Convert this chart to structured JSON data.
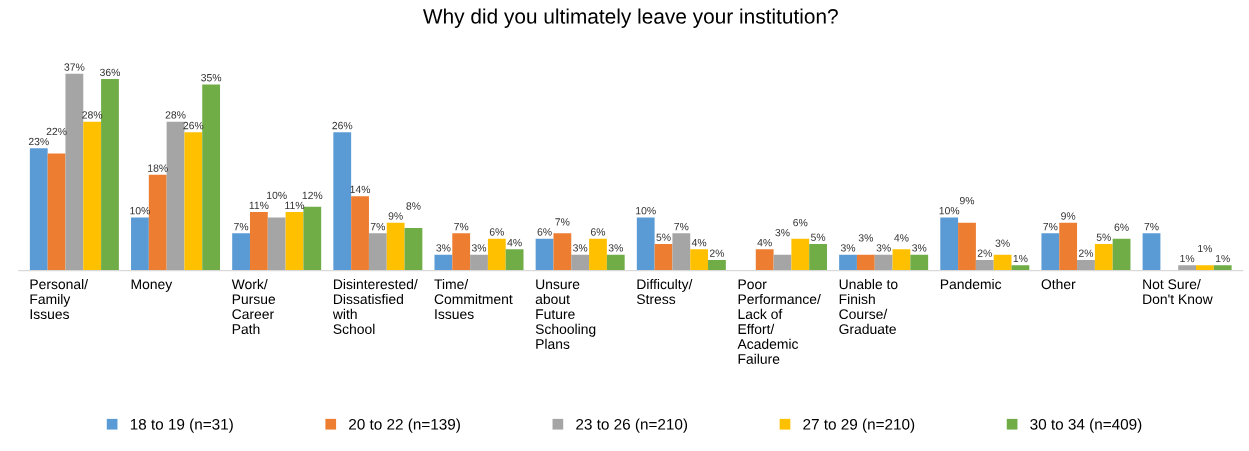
{
  "chart_data": {
    "type": "bar",
    "title": "Why did you ultimately leave your institution?",
    "categories": [
      "Personal/\nFamily\nIssues",
      "Money",
      "Work/\nPursue\nCareer\nPath",
      "Disinterested/\nDissatisfied\nwith\nSchool",
      "Time/\nCommitment\nIssues",
      "Unsure\nabout\nFuture\nSchooling\nPlans",
      "Difficulty/\nStress",
      "Poor\nPerformance/\nLack of\nEffort/\nAcademic\nFailure",
      "Unable to\nFinish\nCourse/\nGraduate",
      "Pandemic",
      "Other",
      "Not Sure/\nDon't Know"
    ],
    "series": [
      {
        "name": "18 to 19 (n=31)",
        "color": "#5b9bd5",
        "values": [
          23,
          10,
          7,
          26,
          3,
          6,
          10,
          null,
          3,
          10,
          7,
          7
        ],
        "value_labels": [
          "23%",
          "10%",
          "7%",
          "26%",
          "3%",
          "6%",
          "10%",
          null,
          "3%",
          "10%",
          "7%",
          "7%"
        ]
      },
      {
        "name": "20 to 22 (n=139)",
        "color": "#ed7d31",
        "values": [
          22,
          18,
          11,
          14,
          7,
          7,
          5,
          4,
          3,
          9,
          9,
          null
        ],
        "value_labels": [
          "22%",
          "18%",
          "11%",
          "14%",
          "7%",
          "7%",
          "5%",
          "4%",
          "3%",
          "9%",
          "9%",
          null
        ]
      },
      {
        "name": "23 to 26 (n=210)",
        "color": "#a5a5a5",
        "values": [
          37,
          28,
          10,
          7,
          3,
          3,
          7,
          3,
          3,
          2,
          2,
          1
        ],
        "value_labels": [
          "37%",
          "28%",
          "10%",
          "7%",
          "3%",
          "3%",
          "7%",
          "3%",
          "3%",
          "2%",
          "2%",
          "1%"
        ]
      },
      {
        "name": "27 to 29 (n=210)",
        "color": "#ffc000",
        "values": [
          28,
          26,
          11,
          9,
          6,
          6,
          4,
          6,
          4,
          3,
          5,
          1
        ],
        "value_labels": [
          "28%",
          "26%",
          "11%",
          "9%",
          "6%",
          "6%",
          "4%",
          "6%",
          "4%",
          "3%",
          "5%",
          "1%"
        ]
      },
      {
        "name": "30 to 34 (n=409)",
        "color": "#70ad47",
        "values": [
          36,
          35,
          12,
          8,
          4,
          3,
          2,
          5,
          3,
          1,
          6,
          1
        ],
        "value_labels": [
          "36%",
          "35%",
          "12%",
          "8%",
          "4%",
          "3%",
          "2%",
          "5%",
          "3%",
          "1%",
          "6%",
          "1%"
        ]
      }
    ],
    "legend": "bottom",
    "grid": false
  }
}
